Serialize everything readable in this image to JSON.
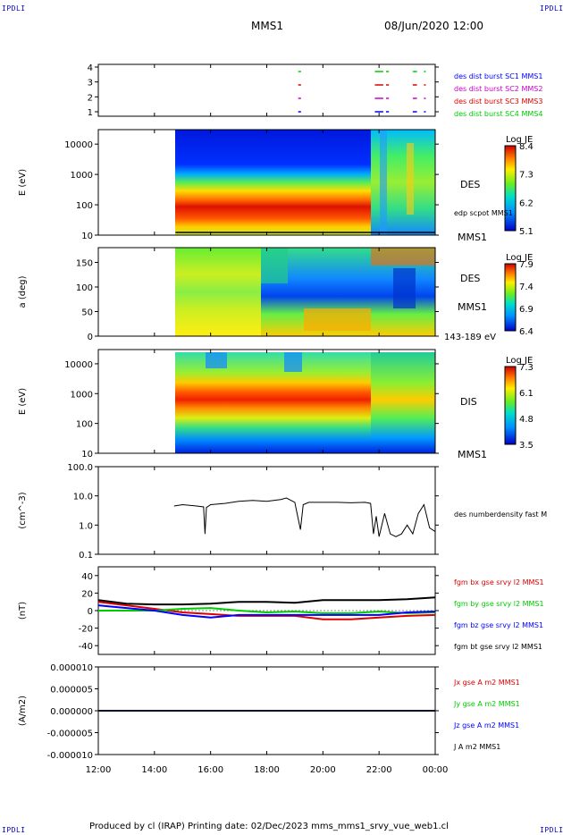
{
  "header": {
    "corner_tl": "IPDLI",
    "corner_tr": "IPDLI",
    "corner_bl": "IPDLI",
    "corner_br": "IPDLI",
    "title": "MMS1",
    "date": "08/Jun/2020 12:00"
  },
  "footer": {
    "text": "Produced by cl (IRAP)   Printing date: 02/Dec/2023   mms_mms1_srvy_vue_web1.cl"
  },
  "chart_data": [
    {
      "type": "scatter",
      "name": "burst availability",
      "yticks": [
        "1",
        "2",
        "3",
        "4"
      ],
      "legend": [
        {
          "label": "des dist burst SC1 MMS1",
          "color": "#0000ff"
        },
        {
          "label": "des dist burst SC2 MMS2",
          "color": "#cc00cc"
        },
        {
          "label": "des dist burst SC3 MMS3",
          "color": "#dd0000"
        },
        {
          "label": "des dist burst SC4 MMS4",
          "color": "#00cc00"
        }
      ],
      "intervals_hours": [
        [
          19.12,
          19.22
        ],
        [
          21.85,
          22.15
        ],
        [
          22.25,
          22.35
        ],
        [
          23.2,
          23.35
        ],
        [
          23.6,
          23.65
        ]
      ]
    },
    {
      "type": "heatmap",
      "ylabel": "E (eV)",
      "yticks": [
        "10",
        "100",
        "1000",
        "10000"
      ],
      "ylog": true,
      "ylim": [
        10,
        30000
      ],
      "data_start_hour": 14.75,
      "right_labels": [
        "DES",
        "edp scpot MMS1",
        "MMS1"
      ],
      "colorbar": {
        "title": "Log JE",
        "ticks": [
          "8.4",
          "7.3",
          "6.2",
          "5.1"
        ]
      }
    },
    {
      "type": "heatmap",
      "ylabel": "a (deg)",
      "yticks": [
        "0",
        "50",
        "100",
        "150"
      ],
      "ylim": [
        0,
        180
      ],
      "data_start_hour": 14.75,
      "right_labels": [
        "DES",
        "MMS1",
        "143-189 eV"
      ],
      "colorbar": {
        "title": "Log JE",
        "ticks": [
          "7.9",
          "7.4",
          "6.9",
          "6.4"
        ]
      }
    },
    {
      "type": "heatmap",
      "ylabel": "E (eV)",
      "yticks": [
        "10",
        "100",
        "1000",
        "10000"
      ],
      "ylog": true,
      "ylim": [
        10,
        30000
      ],
      "data_start_hour": 14.75,
      "right_labels": [
        "DIS",
        "MMS1"
      ],
      "colorbar": {
        "title": "Log JE",
        "ticks": [
          "7.3",
          "6.1",
          "4.8",
          "3.5"
        ]
      }
    },
    {
      "type": "line",
      "ylabel": "(cm^-3)",
      "yticks": [
        "0.1",
        "1.0",
        "10.0",
        "100.0"
      ],
      "ylog": true,
      "ylim": [
        0.1,
        100
      ],
      "series": [
        {
          "name": "des numberdensity fast M",
          "color": "#000000",
          "x": [
            14.7,
            15.0,
            15.5,
            15.75,
            15.8,
            15.85,
            16.0,
            16.5,
            17.0,
            17.5,
            18.0,
            18.5,
            18.7,
            19.0,
            19.1,
            19.2,
            19.3,
            19.5,
            20.0,
            20.5,
            21.0,
            21.5,
            21.7,
            21.8,
            21.9,
            22.0,
            22.2,
            22.4,
            22.6,
            22.8,
            23.0,
            23.2,
            23.4,
            23.6,
            23.8,
            24.0
          ],
          "y": [
            4.5,
            5.0,
            4.5,
            4.2,
            0.5,
            4.0,
            5.0,
            5.5,
            6.5,
            7.0,
            6.5,
            7.5,
            8.5,
            6.0,
            2.0,
            0.7,
            5.0,
            6.0,
            6.0,
            6.0,
            5.8,
            6.0,
            5.5,
            0.5,
            2.0,
            0.4,
            2.5,
            0.5,
            0.4,
            0.5,
            1.0,
            0.5,
            2.5,
            5.0,
            0.8,
            0.6
          ]
        }
      ]
    },
    {
      "type": "line",
      "ylabel": "(nT)",
      "yticks": [
        "-40",
        "-20",
        "0",
        "20",
        "40"
      ],
      "ylim": [
        -50,
        50
      ],
      "series": [
        {
          "name": "fgm bx gse srvy l2 MMS1",
          "color": "#dd0000",
          "x": [
            12,
            13,
            14,
            15,
            16,
            17,
            18,
            19,
            20,
            21,
            22,
            23,
            24
          ],
          "y": [
            10,
            6,
            2,
            -2,
            -4,
            -6,
            -6,
            -6,
            -10,
            -10,
            -8,
            -6,
            -5
          ]
        },
        {
          "name": "fgm by gse srvy l2 MMS1",
          "color": "#00cc00",
          "x": [
            12,
            13,
            14,
            15,
            16,
            17,
            18,
            19,
            20,
            21,
            22,
            23,
            24
          ],
          "y": [
            0,
            0,
            0,
            2,
            3,
            0,
            -2,
            -1,
            -3,
            -3,
            -1,
            -3,
            -2
          ]
        },
        {
          "name": "fgm bz gse srvy l2 MMS1",
          "color": "#0000ff",
          "x": [
            12,
            13,
            14,
            15,
            16,
            17,
            18,
            19,
            20,
            21,
            22,
            23,
            24
          ],
          "y": [
            6,
            3,
            0,
            -5,
            -8,
            -5,
            -5,
            -5,
            -5,
            -5,
            -5,
            -2,
            -1
          ]
        },
        {
          "name": "fgm bt gse srvy l2 MMS1",
          "color": "#000000",
          "x": [
            12,
            13,
            14,
            15,
            16,
            17,
            18,
            19,
            20,
            21,
            22,
            23,
            24
          ],
          "y": [
            12,
            8,
            7,
            7,
            8,
            10,
            10,
            9,
            12,
            12,
            12,
            13,
            15
          ]
        }
      ]
    },
    {
      "type": "line",
      "ylabel": "(A/m2)",
      "yticks": [
        "-0.000010",
        "-0.000005",
        "0.000000",
        "0.000005",
        "0.000010"
      ],
      "ylim": [
        -1e-05,
        1e-05
      ],
      "series": [
        {
          "name": "Jx gse A m2 MMS1",
          "color": "#dd0000",
          "x": [
            12,
            24
          ],
          "y": [
            0,
            0
          ]
        },
        {
          "name": "Jy gse A m2 MMS1",
          "color": "#00cc00",
          "x": [
            12,
            24
          ],
          "y": [
            0,
            0
          ]
        },
        {
          "name": "Jz gse A m2 MMS1",
          "color": "#0000ff",
          "x": [
            12,
            24
          ],
          "y": [
            0,
            0
          ]
        },
        {
          "name": "J A m2 MMS1",
          "color": "#000000",
          "x": [
            12,
            24
          ],
          "y": [
            0,
            0
          ]
        }
      ]
    }
  ],
  "xaxis": {
    "ticks": [
      "12:00",
      "14:00",
      "16:00",
      "18:00",
      "20:00",
      "22:00",
      "00:00"
    ],
    "xlim": [
      12,
      24
    ]
  }
}
